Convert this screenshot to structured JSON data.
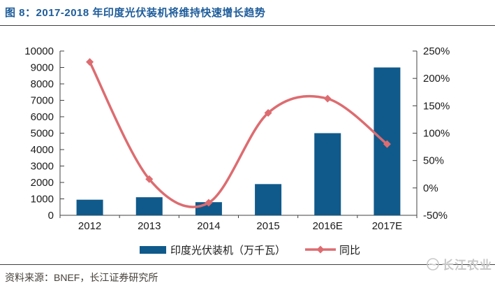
{
  "title": "图 8：2017-2018 年印度光伏装机将维持快速增长趋势",
  "footer": {
    "source": "资料来源：BNEF，长江证券研究所"
  },
  "watermark": {
    "text": "长江农业"
  },
  "colors": {
    "bar": "#105a8b",
    "line": "#dd6c70",
    "title": "#1d5c9b",
    "axis": "#404040",
    "text": "#1a1a1a",
    "footer_text": "#46403a",
    "watermark": "#c8c8c8"
  },
  "chart_data": {
    "type": "bar+line combo",
    "categories": [
      "2012",
      "2013",
      "2014",
      "2015",
      "2016E",
      "2017E"
    ],
    "series": [
      {
        "name": "印度光伏装机（万千瓦）",
        "type": "bar",
        "axis": "left",
        "values": [
          950,
          1100,
          800,
          1900,
          5000,
          9000
        ]
      },
      {
        "name": "同比",
        "type": "line",
        "axis": "right",
        "unit": "%",
        "values": [
          230,
          16,
          -27,
          137,
          163,
          80
        ]
      }
    ],
    "left_axis": {
      "min": 0,
      "max": 10000,
      "step": 1000,
      "tick_labels": [
        "0",
        "1000",
        "2000",
        "3000",
        "4000",
        "5000",
        "6000",
        "7000",
        "8000",
        "9000",
        "10000"
      ]
    },
    "right_axis": {
      "min": -50,
      "max": 250,
      "step": 50,
      "tick_labels": [
        "-50%",
        "0%",
        "50%",
        "100%",
        "150%",
        "200%",
        "250%"
      ]
    },
    "grid": false,
    "legend_position": "bottom"
  }
}
